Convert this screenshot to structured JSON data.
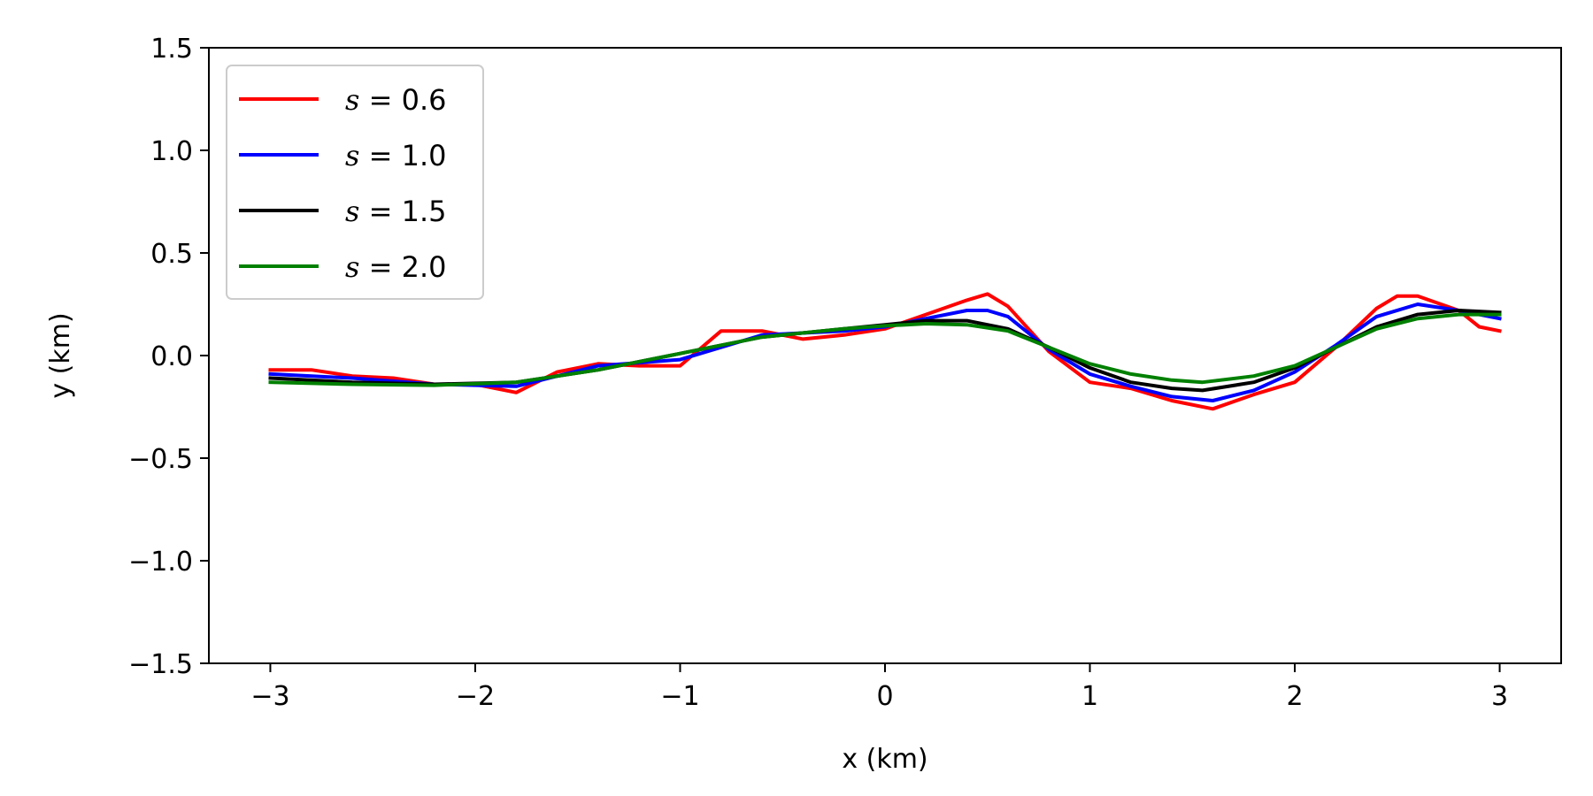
{
  "chart_data": {
    "type": "line",
    "xlabel": "x (km)",
    "ylabel": "y (km)",
    "xlim": [
      -3.3,
      3.3
    ],
    "ylim": [
      -1.5,
      1.5
    ],
    "xticks": [
      -3,
      -2,
      -1,
      0,
      1,
      2,
      3
    ],
    "xtick_labels": [
      "−3",
      "−2",
      "−1",
      "0",
      "1",
      "2",
      "3"
    ],
    "yticks": [
      -1.5,
      -1.0,
      -0.5,
      0.0,
      0.5,
      1.0,
      1.5
    ],
    "ytick_labels": [
      "−1.5",
      "−1.0",
      "−0.5",
      "0.0",
      "0.5",
      "1.0",
      "1.5"
    ],
    "grid": false,
    "legend_position": "upper-left",
    "series": [
      {
        "name": "s = 0.6",
        "legend_symbol": "s",
        "legend_value": "0.6",
        "color": "#ff0000",
        "x": [
          -3.0,
          -2.8,
          -2.6,
          -2.4,
          -2.2,
          -2.0,
          -1.8,
          -1.6,
          -1.4,
          -1.2,
          -1.0,
          -0.8,
          -0.6,
          -0.4,
          -0.2,
          0.0,
          0.2,
          0.4,
          0.5,
          0.6,
          0.8,
          1.0,
          1.2,
          1.4,
          1.6,
          1.8,
          2.0,
          2.2,
          2.4,
          2.5,
          2.6,
          2.8,
          2.9,
          3.0
        ],
        "y": [
          -0.07,
          -0.07,
          -0.1,
          -0.11,
          -0.14,
          -0.14,
          -0.18,
          -0.08,
          -0.04,
          -0.05,
          -0.05,
          0.12,
          0.12,
          0.08,
          0.1,
          0.13,
          0.2,
          0.27,
          0.3,
          0.24,
          0.02,
          -0.13,
          -0.16,
          -0.22,
          -0.26,
          -0.19,
          -0.13,
          0.04,
          0.23,
          0.29,
          0.29,
          0.22,
          0.14,
          0.12
        ]
      },
      {
        "name": "s = 1.0",
        "legend_symbol": "s",
        "legend_value": "1.0",
        "color": "#0000ff",
        "x": [
          -3.0,
          -2.6,
          -2.2,
          -1.8,
          -1.4,
          -1.0,
          -0.6,
          -0.2,
          0.0,
          0.2,
          0.4,
          0.5,
          0.6,
          0.8,
          1.0,
          1.2,
          1.4,
          1.6,
          1.8,
          2.0,
          2.2,
          2.4,
          2.6,
          2.8,
          3.0
        ],
        "y": [
          -0.09,
          -0.11,
          -0.14,
          -0.15,
          -0.05,
          -0.02,
          0.1,
          0.12,
          0.14,
          0.18,
          0.22,
          0.22,
          0.19,
          0.03,
          -0.09,
          -0.15,
          -0.2,
          -0.22,
          -0.17,
          -0.08,
          0.05,
          0.19,
          0.25,
          0.22,
          0.18
        ]
      },
      {
        "name": "s = 1.5",
        "legend_symbol": "s",
        "legend_value": "1.5",
        "color": "#000000",
        "x": [
          -3.0,
          -2.6,
          -2.2,
          -1.8,
          -1.4,
          -1.0,
          -0.6,
          -0.2,
          0.0,
          0.2,
          0.4,
          0.6,
          0.8,
          1.0,
          1.2,
          1.4,
          1.55,
          1.8,
          2.0,
          2.2,
          2.4,
          2.6,
          2.8,
          3.0
        ],
        "y": [
          -0.11,
          -0.13,
          -0.14,
          -0.13,
          -0.07,
          0.01,
          0.09,
          0.13,
          0.15,
          0.17,
          0.17,
          0.13,
          0.04,
          -0.06,
          -0.13,
          -0.16,
          -0.17,
          -0.13,
          -0.06,
          0.04,
          0.14,
          0.2,
          0.22,
          0.21
        ]
      },
      {
        "name": "s = 2.0",
        "legend_symbol": "s",
        "legend_value": "2.0",
        "color": "#008000",
        "x": [
          -3.0,
          -2.6,
          -2.2,
          -1.8,
          -1.4,
          -1.0,
          -0.6,
          -0.2,
          0.0,
          0.2,
          0.4,
          0.6,
          0.8,
          1.0,
          1.2,
          1.4,
          1.55,
          1.8,
          2.0,
          2.2,
          2.4,
          2.6,
          2.8,
          3.0
        ],
        "y": [
          -0.13,
          -0.14,
          -0.145,
          -0.13,
          -0.07,
          0.01,
          0.09,
          0.13,
          0.145,
          0.155,
          0.15,
          0.12,
          0.04,
          -0.04,
          -0.09,
          -0.12,
          -0.13,
          -0.1,
          -0.05,
          0.04,
          0.13,
          0.18,
          0.2,
          0.2
        ]
      }
    ]
  }
}
